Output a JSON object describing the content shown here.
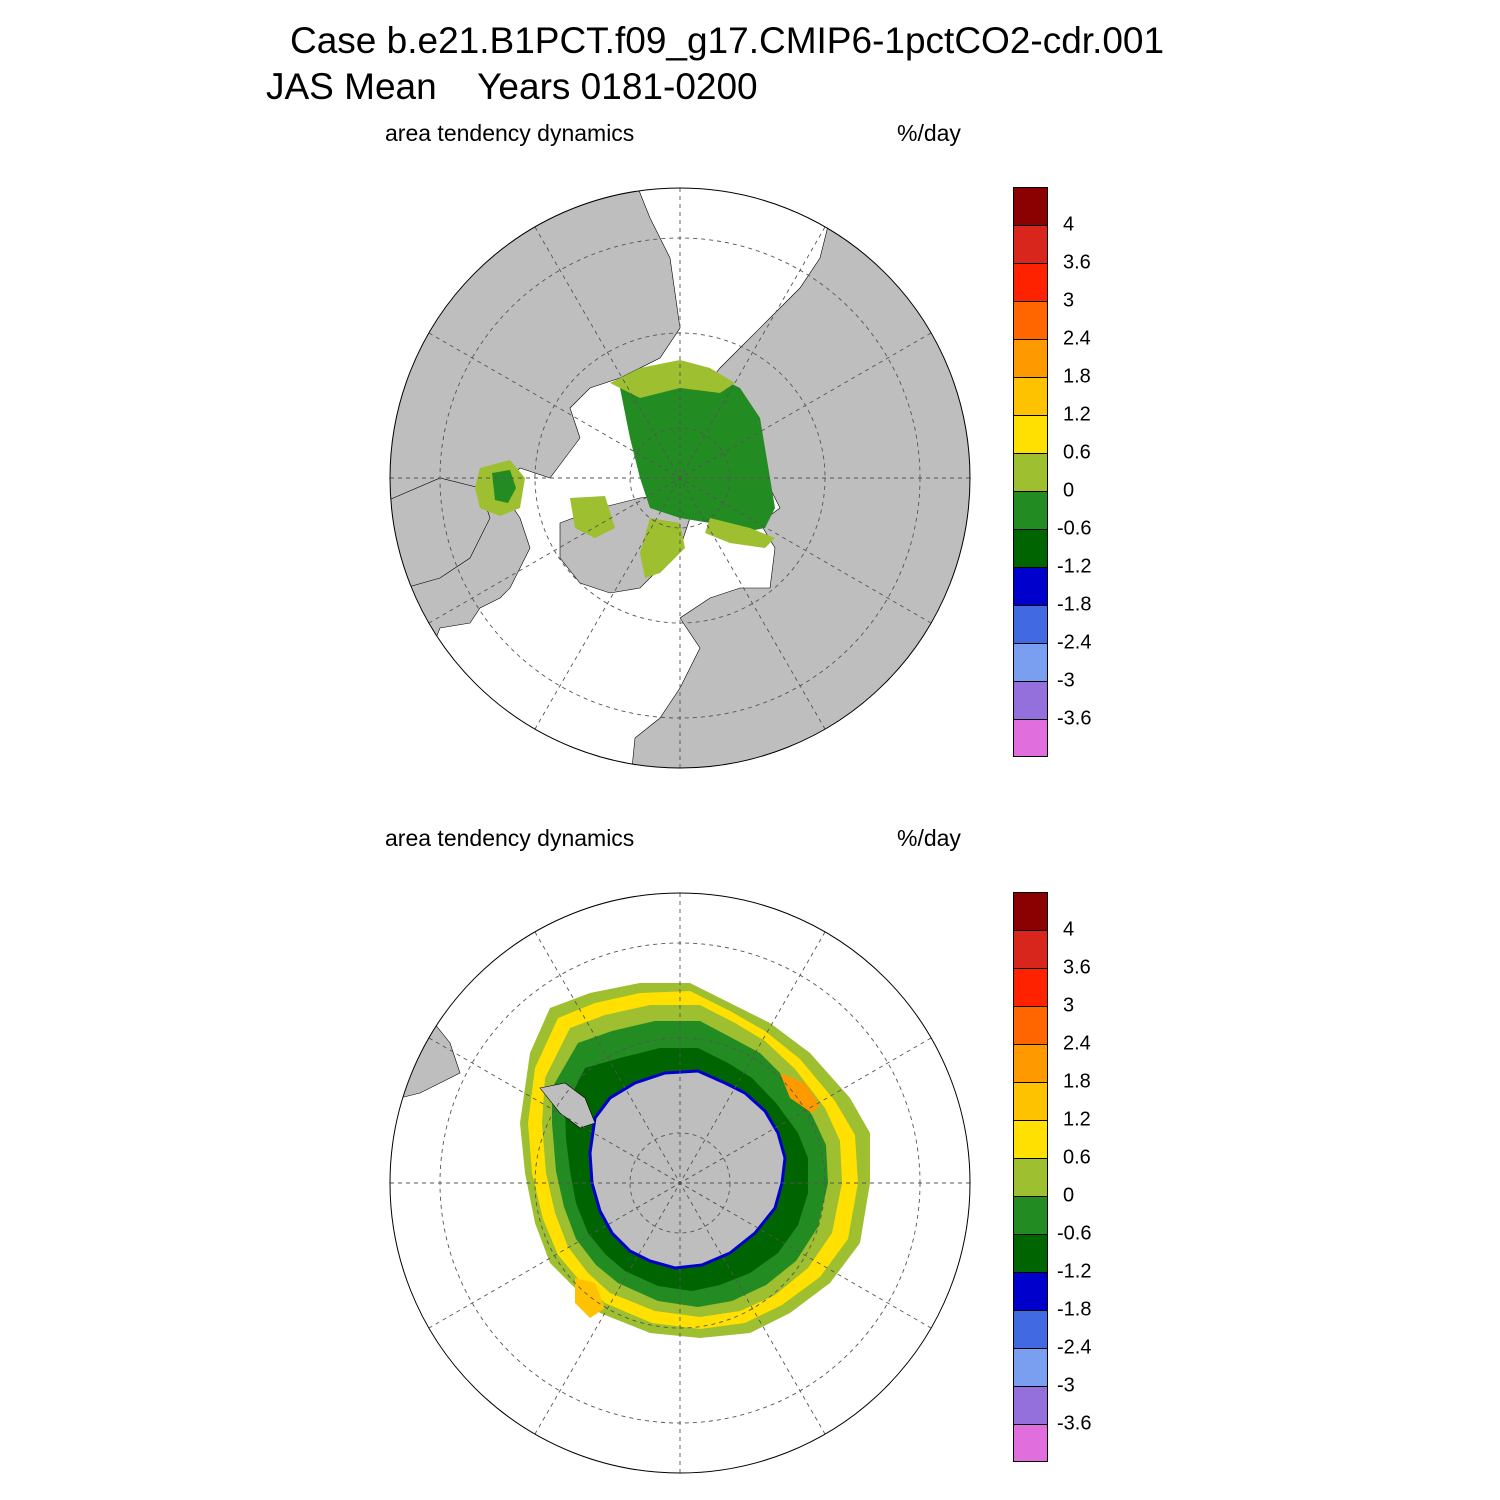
{
  "header": {
    "title_line1": "Case b.e21.B1PCT.f09_g17.CMIP6-1pctCO2-cdr.001",
    "title_line2": "JAS Mean    Years 0181-0200"
  },
  "panels": [
    {
      "id": "north",
      "variable_label": "area tendency dynamics",
      "units_label": "%/day",
      "hemisphere": "Northern Hemisphere polar stereographic"
    },
    {
      "id": "south",
      "variable_label": "area tendency dynamics",
      "units_label": "%/day",
      "hemisphere": "Southern Hemisphere polar stereographic"
    }
  ],
  "colorbar": {
    "colors": [
      "#8b0000",
      "#d9261c",
      "#ff2200",
      "#ff6600",
      "#ff9900",
      "#ffc200",
      "#ffe000",
      "#9dbf30",
      "#228b22",
      "#006400",
      "#0000cd",
      "#4169e1",
      "#7a9ef0",
      "#9370db",
      "#e06fdd"
    ],
    "labels": [
      "4",
      "3.6",
      "3",
      "2.4",
      "1.8",
      "1.2",
      "0.6",
      "0",
      "-0.6",
      "-1.2",
      "-1.8",
      "-2.4",
      "-3",
      "-3.6"
    ]
  },
  "map_colors": {
    "land": "#bebebe",
    "ocean": "#ffffff",
    "gridline": "#555555"
  }
}
